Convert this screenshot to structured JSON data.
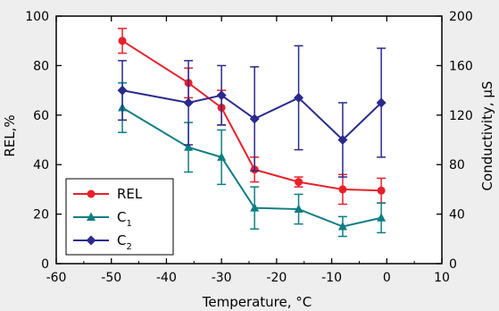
{
  "chart_data": {
    "type": "line",
    "xlabel": "Temperature,  °C",
    "ylabel": "REL,%",
    "y2label": "Conductivity,  μS",
    "xlim": [
      -60,
      10
    ],
    "ylim": [
      0,
      100
    ],
    "y2lim": [
      0,
      200
    ],
    "xticks": [
      -60,
      -50,
      -40,
      -30,
      -20,
      -10,
      0,
      10
    ],
    "yticks": [
      0,
      20,
      40,
      60,
      80,
      100
    ],
    "y2ticks": [
      0,
      40,
      80,
      120,
      160,
      200
    ],
    "grid": false,
    "legend_position": "bottom-left",
    "x": [
      -48,
      -36,
      -30,
      -24,
      -16,
      -8,
      -1
    ],
    "series": [
      {
        "name": "REL",
        "axis": "left",
        "marker": "circle",
        "color": "#e8202a",
        "values": [
          90,
          73,
          63,
          38,
          33,
          30,
          29.5
        ],
        "errors": [
          5,
          6,
          7,
          5,
          2,
          6,
          5
        ]
      },
      {
        "name": "C1",
        "name_base": "C",
        "name_sub": "1",
        "axis": "right",
        "marker": "triangle",
        "color": "#0e7e82",
        "values": [
          126,
          94,
          86,
          45,
          44,
          30,
          37
        ],
        "errors": [
          20,
          20,
          22,
          17,
          12,
          8,
          12
        ]
      },
      {
        "name": "C2",
        "name_base": "C",
        "name_sub": "2",
        "axis": "right",
        "marker": "diamond",
        "color": "#2a2a8c",
        "values": [
          140,
          130,
          136,
          117,
          134,
          100,
          130
        ],
        "errors": [
          24,
          34,
          24,
          42,
          42,
          30,
          44
        ]
      }
    ]
  }
}
